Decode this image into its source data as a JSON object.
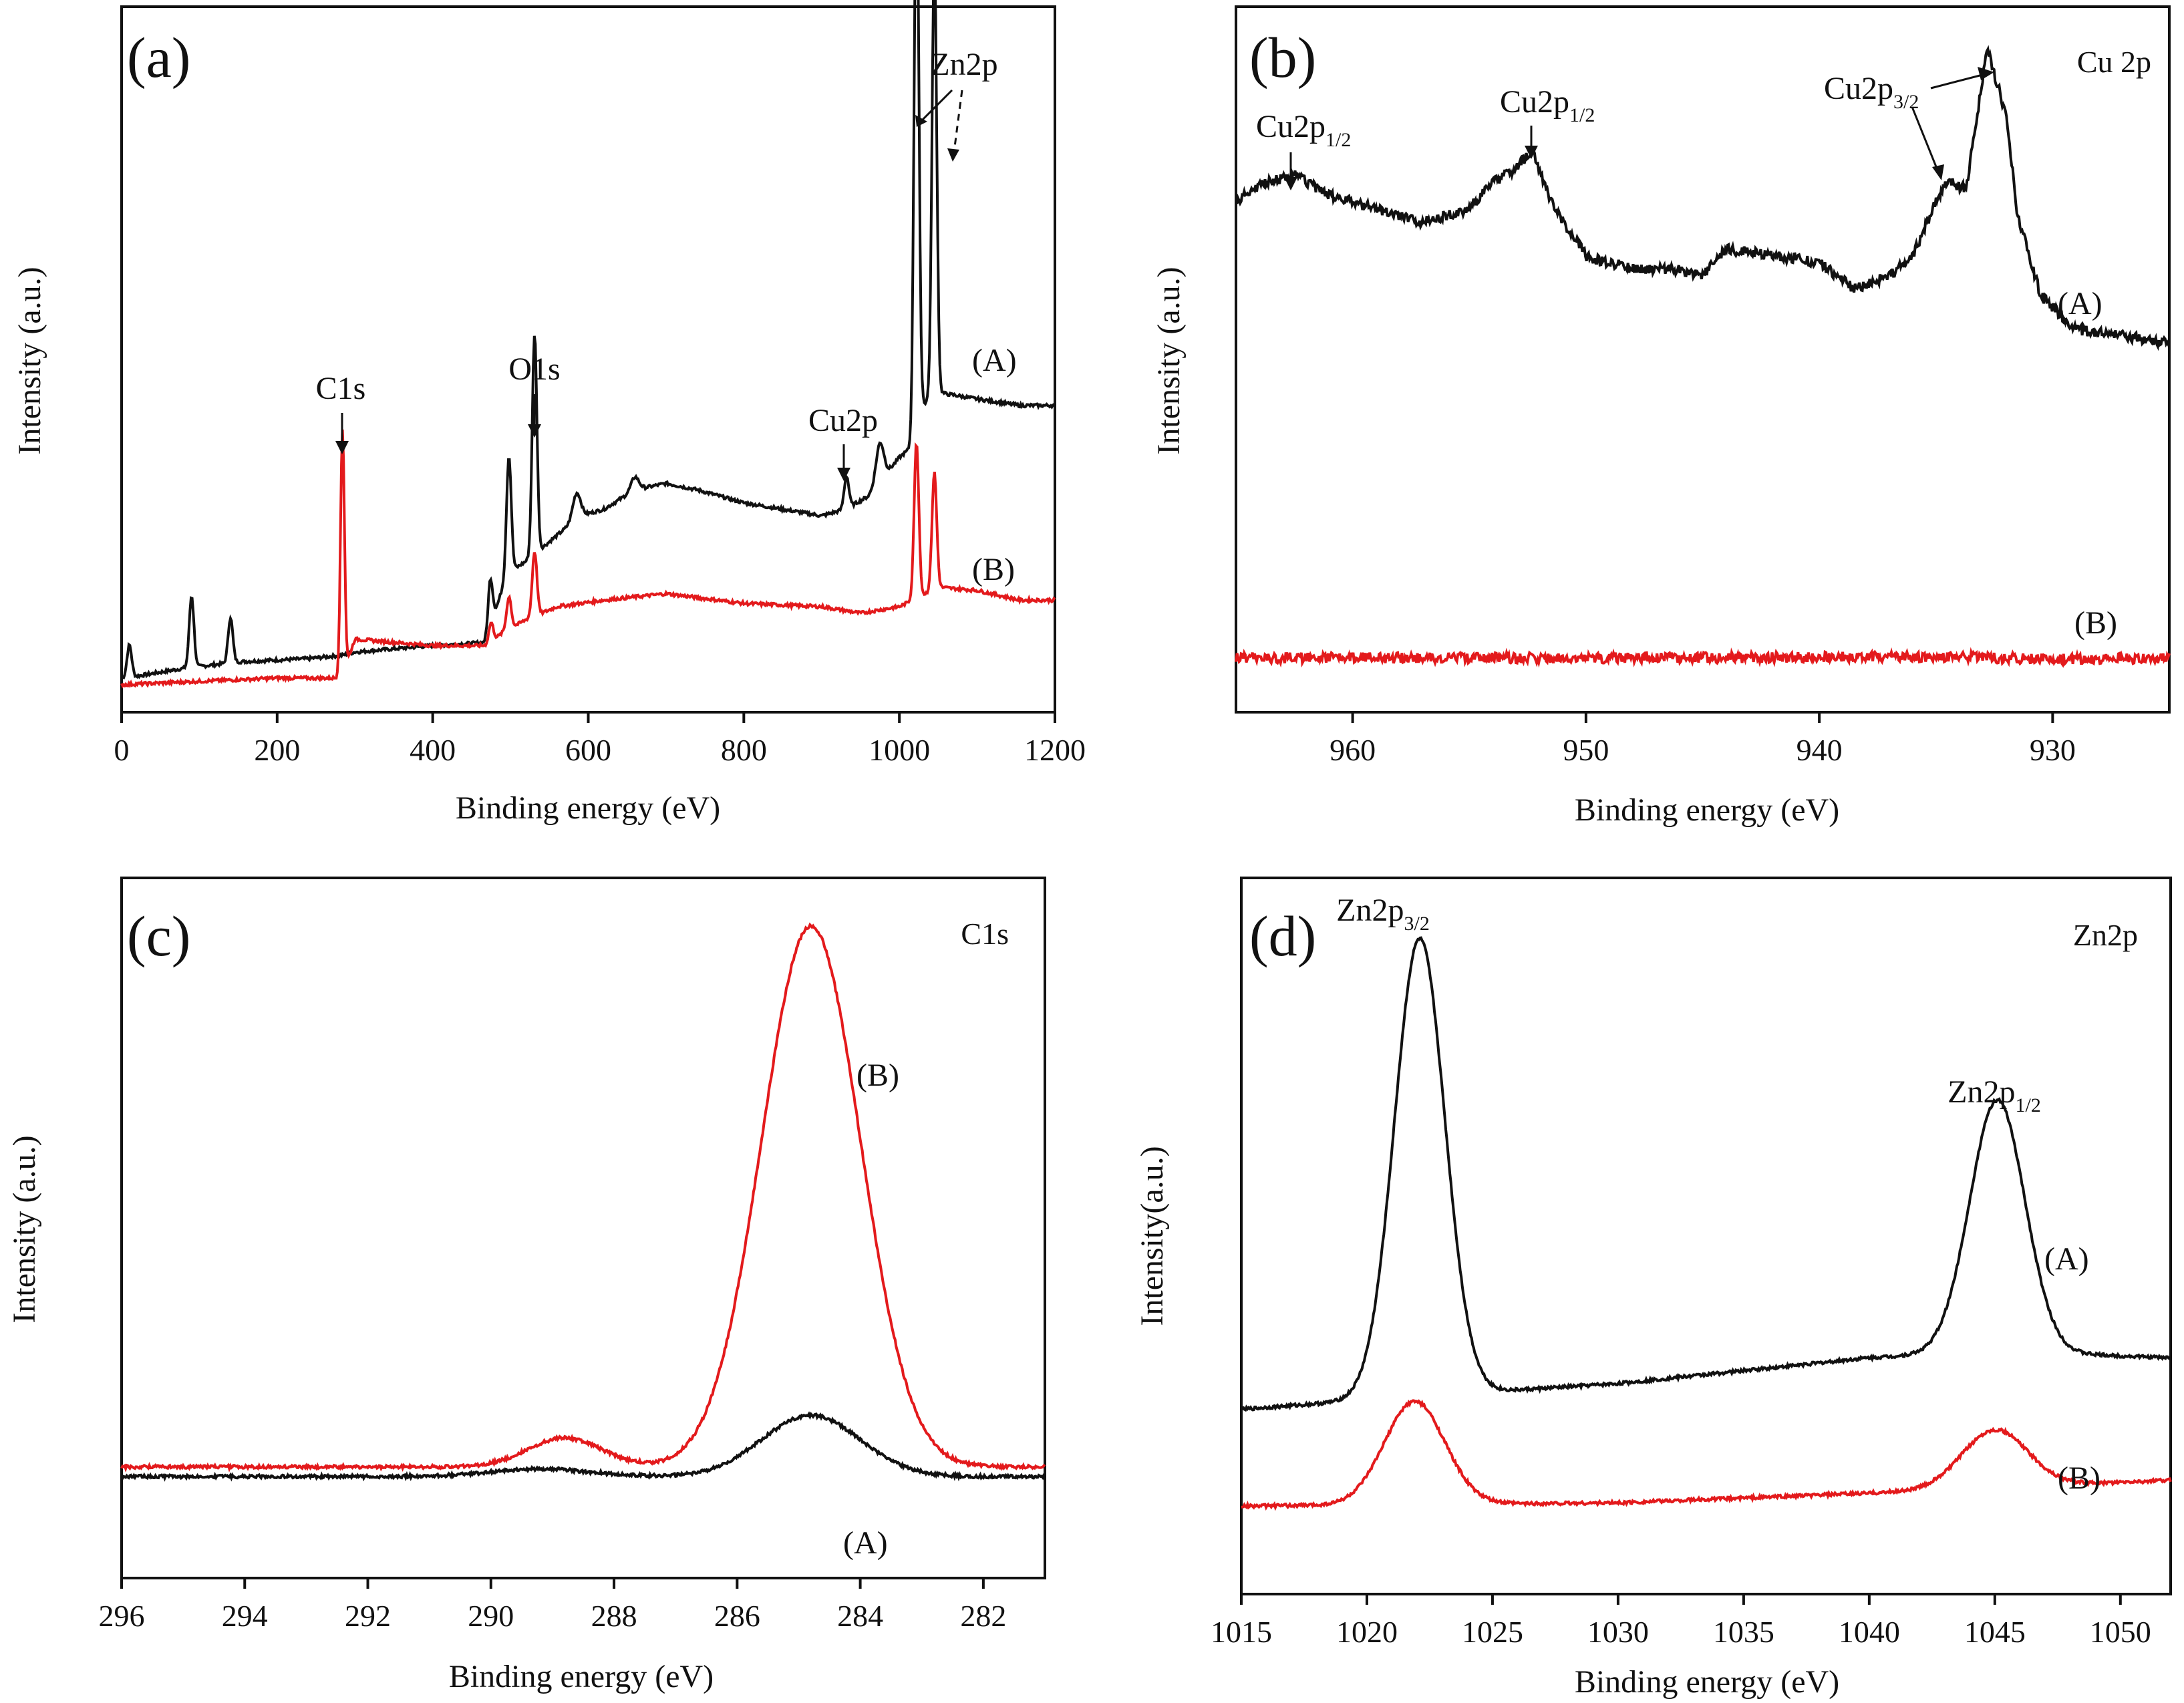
{
  "figure": {
    "panel_count": 4
  },
  "colors": {
    "series_A": "#111111",
    "series_B": "#e31a1c",
    "axis": "#111111",
    "background": "#ffffff"
  },
  "chart_data": [
    {
      "id": "a",
      "type": "line",
      "letter": "(a)",
      "title": "",
      "xlabel": "Binding energy (eV)",
      "ylabel": "Intensity (a.u.)",
      "xlim": [
        0,
        1200
      ],
      "ylim": [
        0,
        100
      ],
      "xticks": [
        0,
        200,
        400,
        600,
        800,
        1000,
        1200
      ],
      "tick_labels": [
        "0",
        "200",
        "400",
        "600",
        "800",
        "1000",
        "1200"
      ],
      "series": [
        {
          "name": "(A)",
          "color": "#111111",
          "baseline": [
            [
              5,
              2
            ],
            [
              30,
              2.5
            ],
            [
              80,
              3.5
            ],
            [
              150,
              4.5
            ],
            [
              240,
              5
            ],
            [
              283,
              5.5
            ],
            [
              300,
              6
            ],
            [
              400,
              7
            ],
            [
              470,
              7.5
            ],
            [
              480,
              12
            ],
            [
              495,
              18
            ],
            [
              520,
              20
            ],
            [
              560,
              24
            ],
            [
              590,
              27
            ],
            [
              620,
              28
            ],
            [
              660,
              31
            ],
            [
              700,
              32
            ],
            [
              740,
              31
            ],
            [
              800,
              29
            ],
            [
              900,
              27
            ],
            [
              930,
              28
            ],
            [
              960,
              30
            ],
            [
              1000,
              36
            ],
            [
              1020,
              38
            ],
            [
              1030,
              44
            ],
            [
              1050,
              46
            ],
            [
              1100,
              45
            ],
            [
              1155,
              44
            ]
          ],
          "peaks": [
            [
              10,
              5,
              3
            ],
            [
              90,
              11,
              3
            ],
            [
              140,
              7,
              3
            ],
            [
              474,
              8,
              3
            ],
            [
              498,
              18,
              3
            ],
            [
              531,
              34,
              3
            ],
            [
              585,
              4,
              5
            ],
            [
              660,
              2,
              5
            ],
            [
              932,
              5,
              3
            ],
            [
              975,
              6,
              5
            ],
            [
              1022,
              90,
              3
            ],
            [
              1045,
              68,
              3
            ]
          ]
        },
        {
          "name": "(B)",
          "color": "#e31a1c",
          "baseline": [
            [
              5,
              1
            ],
            [
              100,
              1.5
            ],
            [
              200,
              2
            ],
            [
              283,
              2
            ],
            [
              300,
              8
            ],
            [
              400,
              7
            ],
            [
              470,
              7
            ],
            [
              490,
              9
            ],
            [
              520,
              11
            ],
            [
              560,
              13
            ],
            [
              620,
              14
            ],
            [
              700,
              15
            ],
            [
              800,
              13.5
            ],
            [
              900,
              13
            ],
            [
              950,
              12
            ],
            [
              1000,
              13
            ],
            [
              1050,
              16
            ],
            [
              1100,
              15.5
            ],
            [
              1155,
              14
            ]
          ],
          "peaks": [
            [
              284,
              38,
              2.5
            ],
            [
              475,
              3,
              3
            ],
            [
              498,
              5,
              3
            ],
            [
              531,
              10,
              3
            ],
            [
              1022,
              24,
              3
            ],
            [
              1045,
              18,
              3
            ]
          ]
        }
      ],
      "curve_labels": [
        "(A)",
        "(B)"
      ],
      "annotations": [
        {
          "text": "C1s",
          "target_x": 284
        },
        {
          "text": "O1s",
          "target_x": 531
        },
        {
          "text": "Cu2p",
          "target_x": 932
        },
        {
          "text": "Zn2p",
          "target_x": 1022
        }
      ]
    },
    {
      "id": "b",
      "type": "line",
      "letter": "(b)",
      "title": "Cu 2p",
      "xlabel": "Binding energy (eV)",
      "ylabel": "Intensity (a.u.)",
      "xlim": [
        965,
        925
      ],
      "ylim": [
        0,
        100
      ],
      "xticks": [
        960,
        950,
        940,
        930
      ],
      "tick_labels": [
        "960",
        "950",
        "940",
        "930"
      ],
      "series": [
        {
          "name": "(A)",
          "color": "#111111",
          "points": [
            [
              965,
              74
            ],
            [
              963.8,
              77
            ],
            [
              962.5,
              78
            ],
            [
              961,
              75
            ],
            [
              959,
              73
            ],
            [
              957,
              71
            ],
            [
              955,
              73
            ],
            [
              954,
              77
            ],
            [
              953,
              79
            ],
            [
              952.3,
              82
            ],
            [
              951.5,
              74
            ],
            [
              950,
              66
            ],
            [
              948,
              64
            ],
            [
              946,
              64
            ],
            [
              945,
              63
            ],
            [
              944,
              67
            ],
            [
              942,
              66
            ],
            [
              940,
              65
            ],
            [
              938.5,
              61
            ],
            [
              937,
              63
            ],
            [
              936,
              66
            ],
            [
              935,
              74
            ],
            [
              934.5,
              77
            ],
            [
              933.7,
              76
            ],
            [
              932.8,
              97
            ],
            [
              932,
              87
            ],
            [
              931.5,
              72
            ],
            [
              930.5,
              60
            ],
            [
              929,
              55
            ],
            [
              927,
              54
            ],
            [
              925,
              53
            ]
          ]
        },
        {
          "name": "(B)",
          "color": "#e31a1c",
          "points": [
            [
              965,
              6
            ],
            [
              955,
              6
            ],
            [
              945,
              6
            ],
            [
              935,
              6.2
            ],
            [
              930,
              5.8
            ],
            [
              925,
              6
            ]
          ]
        }
      ],
      "curve_labels": [
        "(A)",
        "(B)"
      ],
      "annotations": [
        {
          "main": "Cu2p",
          "sub": "1/2",
          "target_x": 962.5
        },
        {
          "main": "Cu2p",
          "sub": "1/2",
          "target_x": 952.3
        },
        {
          "main": "Cu2p",
          "sub": "3/2",
          "target_x": 932.8
        }
      ]
    },
    {
      "id": "c",
      "type": "line",
      "letter": "(c)",
      "title": "C1s",
      "xlabel": "Binding energy (eV)",
      "ylabel": "Intensity (a.u.)",
      "xlim": [
        296,
        281
      ],
      "ylim": [
        0,
        100
      ],
      "xticks": [
        296,
        294,
        292,
        290,
        288,
        286,
        284,
        282
      ],
      "tick_labels": [
        "296",
        "294",
        "292",
        "290",
        "288",
        "286",
        "284",
        "282"
      ],
      "series": [
        {
          "name": "(A)",
          "color": "#111111",
          "baseline": [
            [
              296,
              12.5
            ],
            [
              290,
              12.5
            ],
            [
              286,
              12.5
            ],
            [
              284,
              12
            ],
            [
              281,
              12
            ]
          ],
          "peaks": [
            [
              284.8,
              9.5,
              0.8
            ],
            [
              289.2,
              1.2,
              0.8
            ]
          ]
        },
        {
          "name": "(B)",
          "color": "#e31a1c",
          "baseline": [
            [
              296,
              14
            ],
            [
              292,
              13
            ],
            [
              290,
              12
            ],
            [
              286,
              11.5
            ],
            [
              283,
              10.5
            ],
            [
              281,
              10
            ]
          ],
          "peaks": [
            [
              284.8,
              84,
              0.8
            ],
            [
              288.8,
              4.5,
              0.6
            ]
          ]
        }
      ],
      "curve_labels": [
        "(B)",
        "(A)"
      ],
      "annotations": []
    },
    {
      "id": "d",
      "type": "line",
      "letter": "(d)",
      "title": "Zn2p",
      "xlabel": "Binding energy (eV)",
      "ylabel": "Intensity(a.u.)",
      "xlim": [
        1015,
        1052
      ],
      "ylim": [
        0,
        100
      ],
      "xticks": [
        1015,
        1020,
        1025,
        1030,
        1035,
        1040,
        1045,
        1050
      ],
      "tick_labels": [
        "1015",
        "1020",
        "1025",
        "1030",
        "1035",
        "1040",
        "1045",
        "1050"
      ],
      "series": [
        {
          "name": "(A)",
          "color": "#111111",
          "baseline": [
            [
              1015,
              22
            ],
            [
              1022,
              24
            ],
            [
              1030,
              26
            ],
            [
              1040,
              30
            ],
            [
              1045,
              31
            ],
            [
              1052,
              30
            ]
          ],
          "peaks": [
            [
              1022.1,
              71,
              1.0
            ],
            [
              1045.1,
              39,
              1.1
            ]
          ]
        },
        {
          "name": "(B)",
          "color": "#e31a1c",
          "baseline": [
            [
              1015,
              7
            ],
            [
              1030,
              7.5
            ],
            [
              1040,
              9
            ],
            [
              1052,
              11
            ]
          ],
          "peaks": [
            [
              1021.9,
              16,
              1.2
            ],
            [
              1045.0,
              9,
              1.3
            ]
          ]
        }
      ],
      "curve_labels": [
        "(A)",
        "(B)"
      ],
      "annotations": [
        {
          "main": "Zn2p",
          "sub": "3/2",
          "target_x": 1022.1
        },
        {
          "main": "Zn2p",
          "sub": "1/2",
          "target_x": 1045.1
        }
      ]
    }
  ]
}
